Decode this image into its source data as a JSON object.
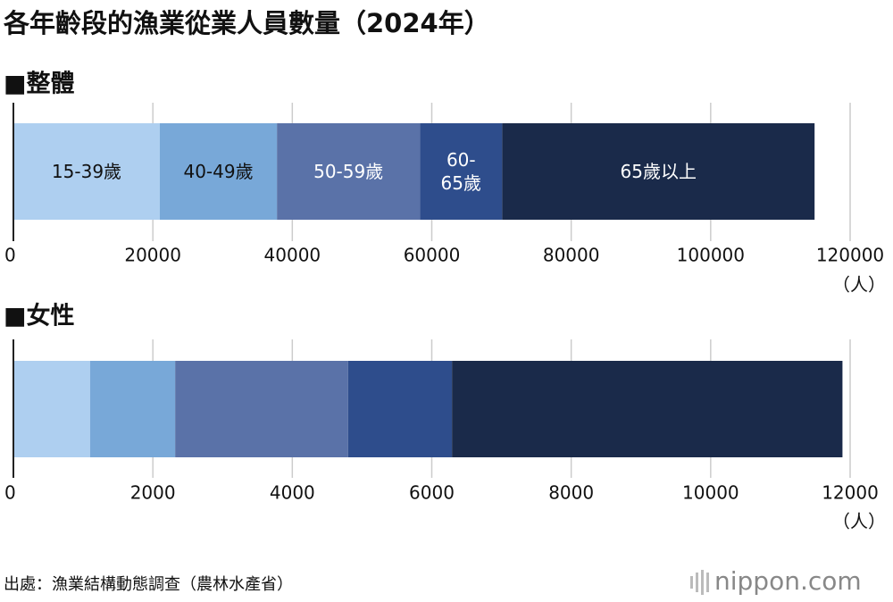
{
  "title": "各年齡段的漁業從業人員數量（2024年）",
  "source": "出處：漁業結構動態調查（農林水產省）",
  "logo": "nippon.com",
  "chart_data": [
    {
      "type": "bar",
      "orientation": "horizontal",
      "stacked": true,
      "title": "■整體",
      "x_label": "（人）",
      "series": [
        {
          "name": "15-39歲",
          "color": "#aecff0",
          "values": [
            21000
          ]
        },
        {
          "name": "40-49歲",
          "color": "#78a8d8",
          "values": [
            16800
          ]
        },
        {
          "name": "50-59歲",
          "color": "#5a72a8",
          "values": [
            20500
          ]
        },
        {
          "name": "60-\n65歲",
          "color": "#2e4d8c",
          "values": [
            11800
          ]
        },
        {
          "name": "65歲以上",
          "color": "#1a2a4a",
          "values": [
            44800
          ]
        }
      ],
      "xlim": [
        0,
        120000
      ],
      "xticks": [
        0,
        20000,
        40000,
        60000,
        80000,
        100000,
        120000
      ],
      "grid": true
    },
    {
      "type": "bar",
      "orientation": "horizontal",
      "stacked": true,
      "title": "■女性",
      "x_label": "（人）",
      "series": [
        {
          "color": "#aecff0",
          "values": [
            1100
          ]
        },
        {
          "color": "#78a8d8",
          "values": [
            1220
          ]
        },
        {
          "color": "#5a72a8",
          "values": [
            2480
          ]
        },
        {
          "color": "#2e4d8c",
          "values": [
            1490
          ]
        },
        {
          "color": "#1a2a4a",
          "values": [
            5600
          ]
        }
      ],
      "xlim": [
        0,
        12000
      ],
      "xticks": [
        0,
        2000,
        4000,
        6000,
        8000,
        10000,
        12000
      ],
      "grid": true
    }
  ]
}
